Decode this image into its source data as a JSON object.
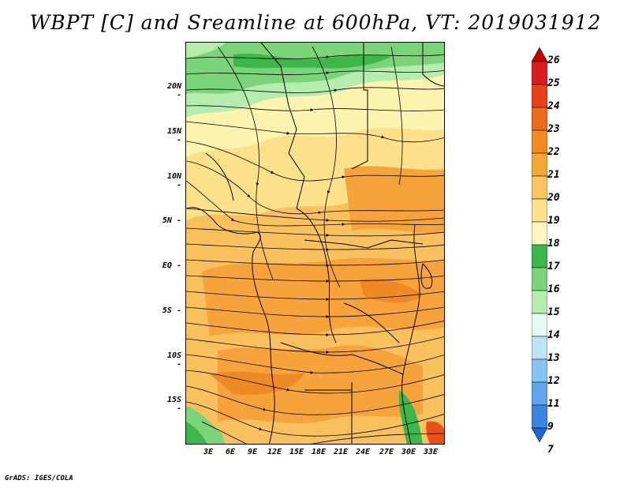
{
  "title": "WBPT [C] and Sreamline at 600hPa, VT: 2019031912",
  "credit": "GrADS: IGES/COLA",
  "map": {
    "lat_labels": [
      "20N",
      "15N",
      "10N",
      "5N",
      "EQ",
      "5S",
      "10S",
      "15S"
    ],
    "lon_labels": [
      "3E",
      "6E",
      "9E",
      "12E",
      "15E",
      "18E",
      "21E",
      "24E",
      "27E",
      "30E",
      "33E"
    ],
    "field_colors": {
      "green_dark": "#3cb84a",
      "green_mid": "#7bd47a",
      "green_light": "#b5edaf",
      "pale_yellow": "#fdf4b0",
      "yellow": "#fde08a",
      "light_orange": "#f9c05e",
      "orange": "#f5a33a",
      "dark_orange": "#ee8a25",
      "red_orange": "#e8521a"
    }
  },
  "colorbar": {
    "labels": [
      "26",
      "25",
      "24",
      "23",
      "22",
      "21",
      "20",
      "19",
      "18",
      "17",
      "16",
      "15",
      "14",
      "13",
      "12",
      "11",
      "9",
      "7"
    ],
    "colors": [
      "#c00000",
      "#d81e1e",
      "#e8421a",
      "#ee6a1c",
      "#f28a20",
      "#f5a835",
      "#f9c664",
      "#fde08a",
      "#fdf6c0",
      "#3cb84a",
      "#7bd47a",
      "#b5edaf",
      "#e6faf5",
      "#bce3f8",
      "#88c4f2",
      "#5fa6ec",
      "#3c86e2",
      "#1e64d4"
    ]
  }
}
